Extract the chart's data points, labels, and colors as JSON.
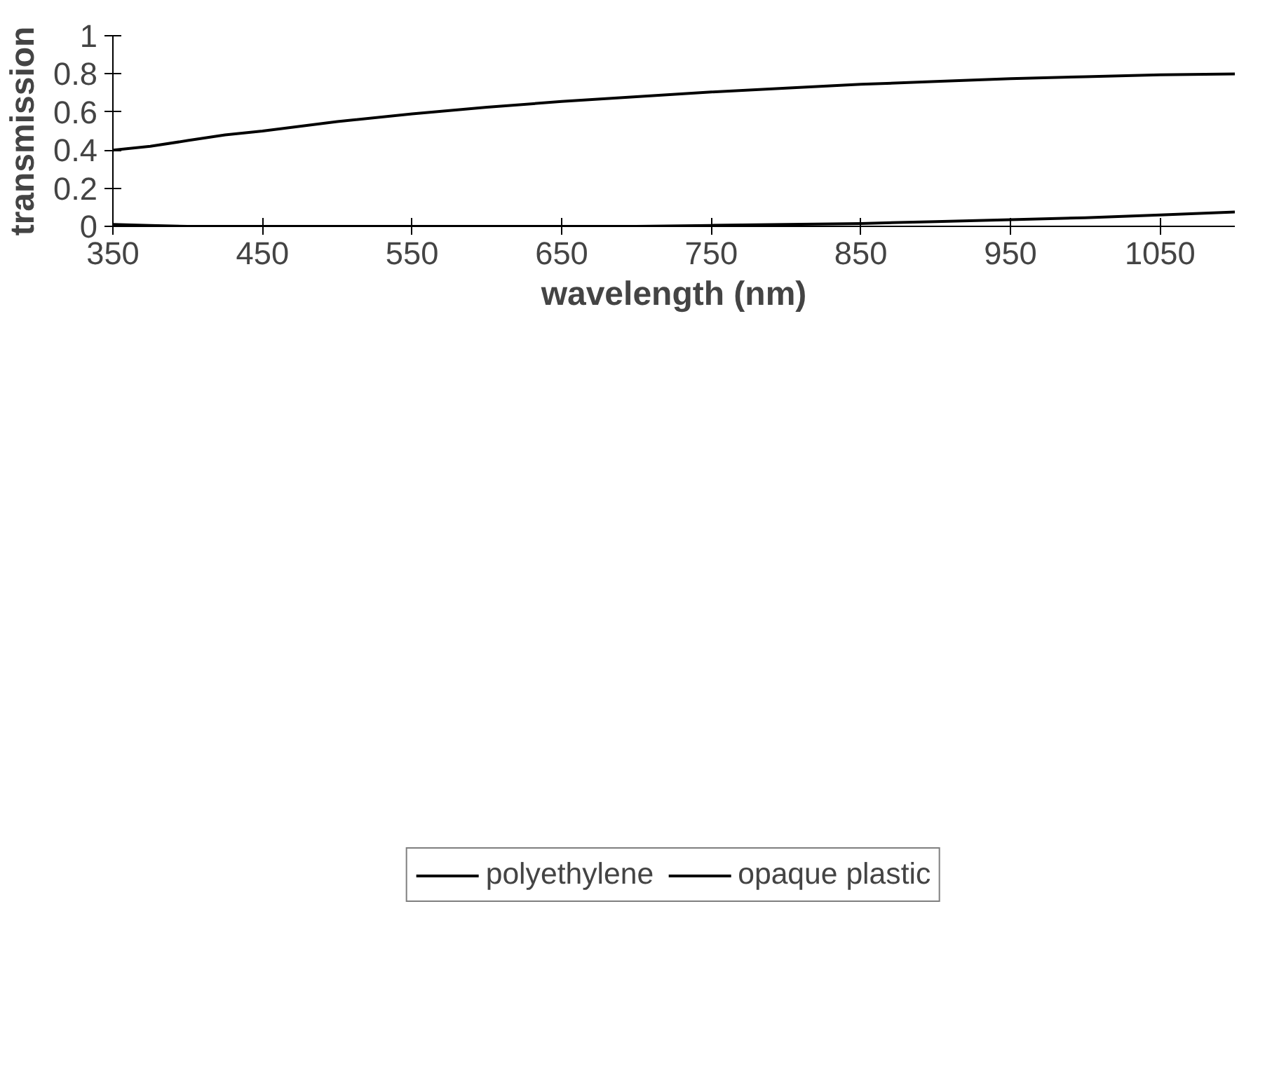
{
  "chart_data": {
    "type": "line",
    "xlabel": "wavelength (nm)",
    "ylabel": "transmission",
    "xlim": [
      350,
      1100
    ],
    "ylim": [
      0,
      1
    ],
    "xticks": [
      350,
      450,
      550,
      650,
      750,
      850,
      950,
      1050
    ],
    "yticks": [
      0,
      0.2,
      0.4,
      0.6,
      0.8,
      1
    ],
    "grid": false,
    "legend": "bottom",
    "marker": "none",
    "line_style": "solid",
    "series": [
      {
        "name": "polyethylene",
        "color": "#000000",
        "x": [
          350,
          375,
          400,
          425,
          450,
          500,
          550,
          600,
          650,
          700,
          750,
          800,
          850,
          900,
          950,
          1000,
          1050,
          1100
        ],
        "values": [
          0.4,
          0.42,
          0.45,
          0.48,
          0.5,
          0.55,
          0.59,
          0.625,
          0.655,
          0.68,
          0.705,
          0.725,
          0.745,
          0.76,
          0.775,
          0.785,
          0.795,
          0.8
        ]
      },
      {
        "name": "opaque plastic",
        "color": "#000000",
        "x": [
          350,
          375,
          400,
          500,
          600,
          700,
          750,
          800,
          850,
          900,
          950,
          1000,
          1050,
          1100
        ],
        "values": [
          0.01,
          0.005,
          0.0,
          0.0,
          0.0,
          0.0,
          0.005,
          0.01,
          0.015,
          0.025,
          0.035,
          0.045,
          0.06,
          0.075
        ]
      }
    ]
  }
}
